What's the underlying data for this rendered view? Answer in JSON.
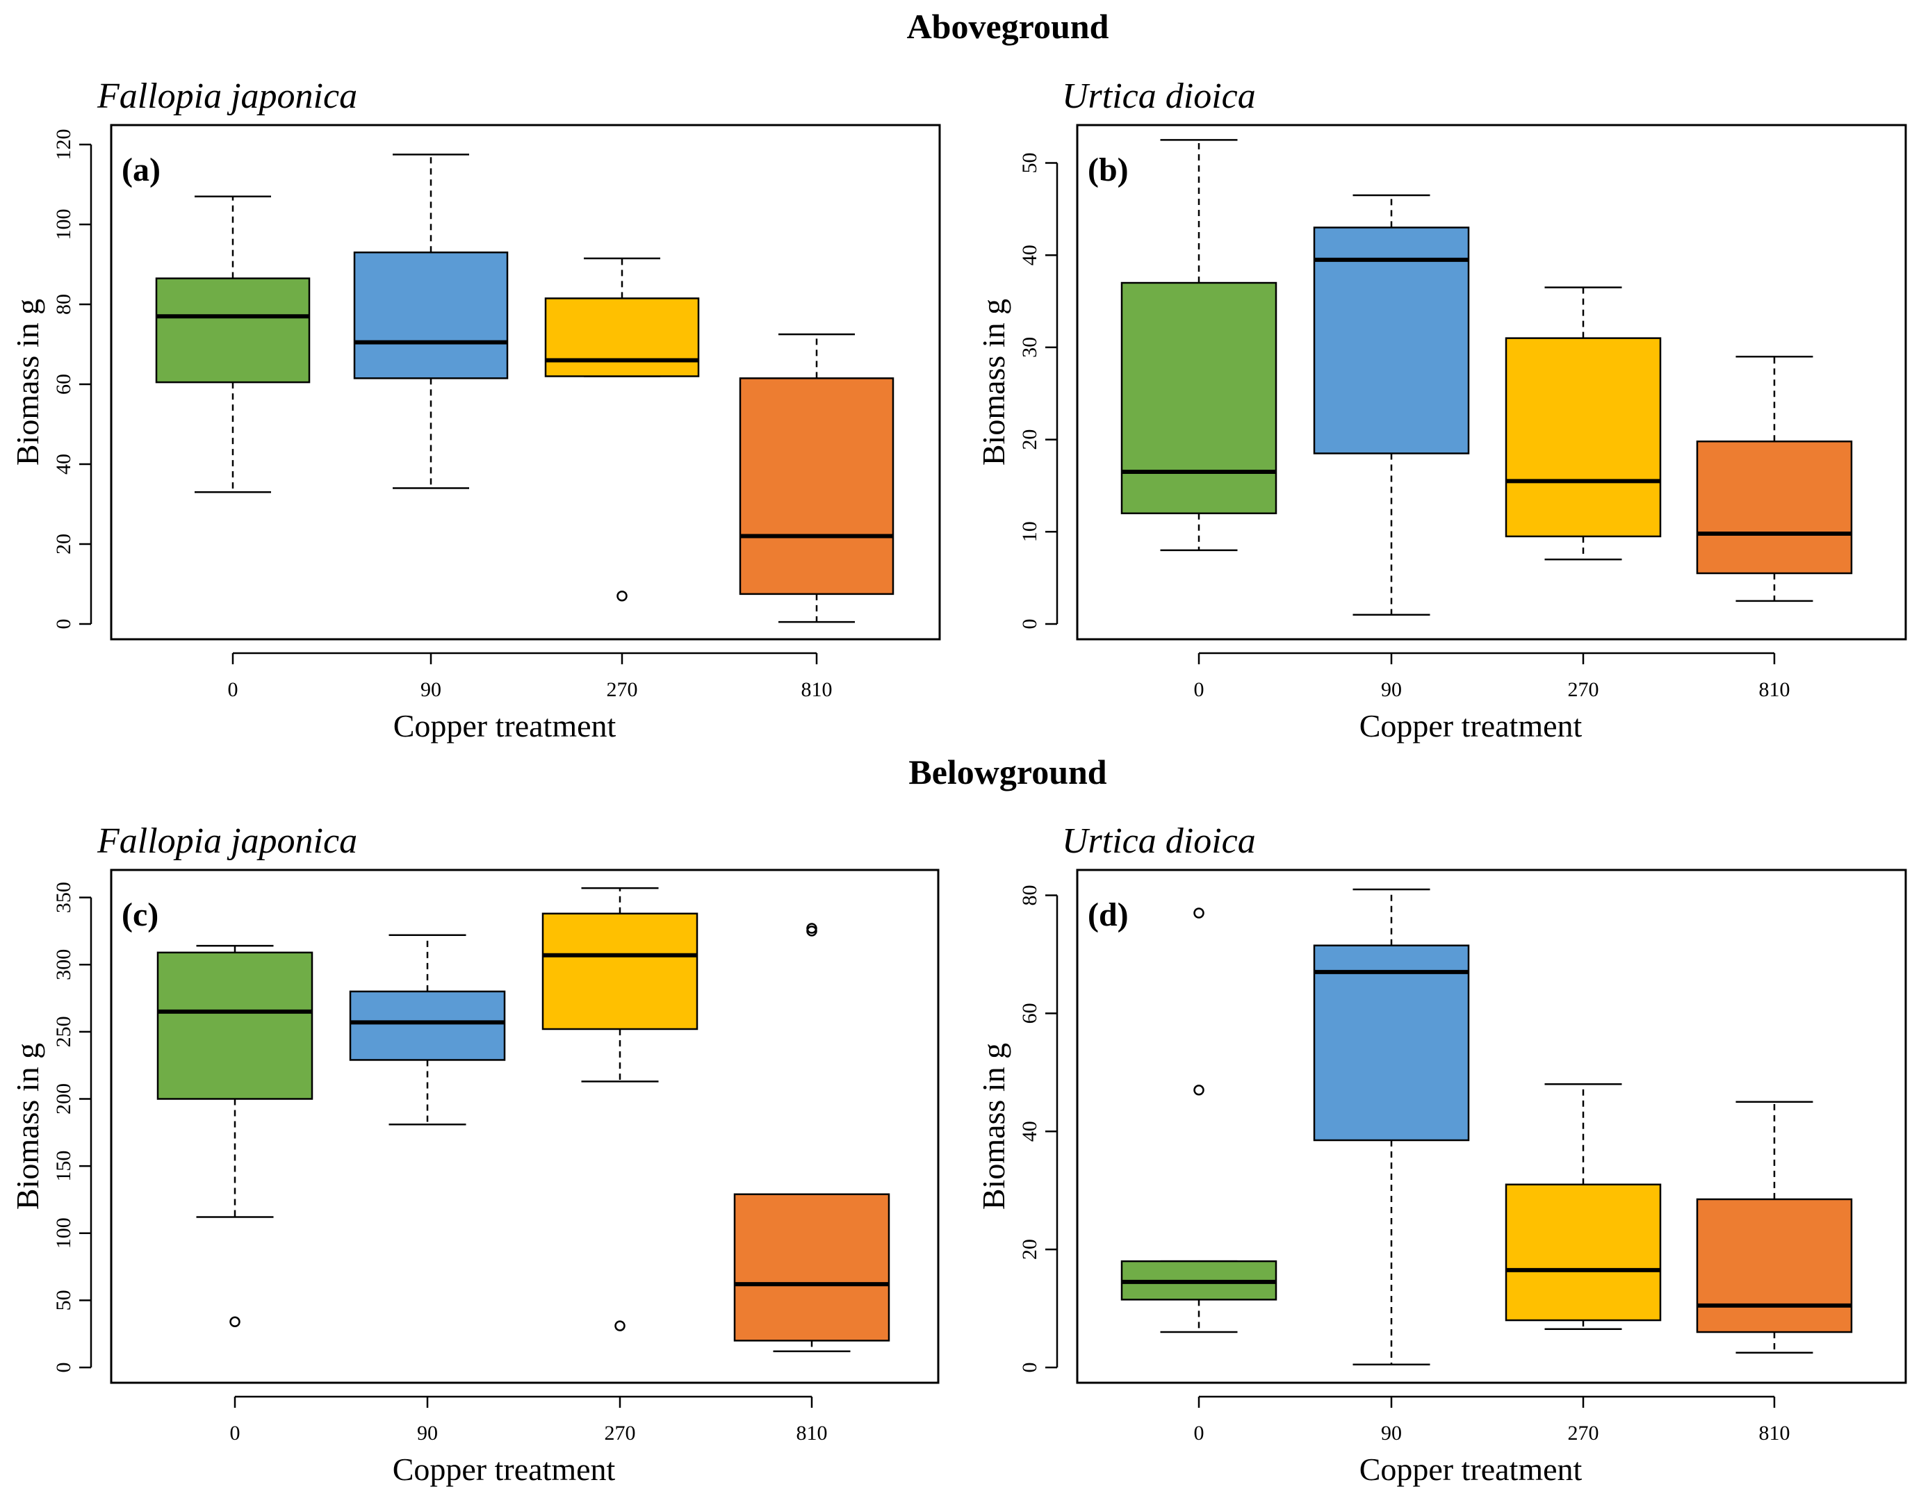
{
  "figure": {
    "section_titles": {
      "above": "Aboveground",
      "below": "Belowground"
    },
    "colors": {
      "0": "#70AD47",
      "90": "#5B9BD5",
      "270": "#FFC000",
      "810": "#ED7D31"
    }
  },
  "chart_data": [
    {
      "type": "boxplot",
      "panel": "(a)",
      "section": "Aboveground",
      "species": "Fallopia japonica",
      "xlabel": "Copper treatment",
      "ylabel": "Biomass in g",
      "categories": [
        "0",
        "90",
        "270",
        "810"
      ],
      "ylim": [
        0,
        120
      ],
      "yticks": [
        "0",
        "20",
        "40",
        "60",
        "80",
        "100",
        "120"
      ],
      "boxes": [
        {
          "category": "0",
          "whisker_low": 33,
          "q1": 60.5,
          "median": 77,
          "q3": 86.5,
          "whisker_high": 107,
          "outliers": []
        },
        {
          "category": "90",
          "whisker_low": 34,
          "q1": 61.5,
          "median": 70.5,
          "q3": 93,
          "whisker_high": 117.5,
          "outliers": []
        },
        {
          "category": "270",
          "whisker_low": 62,
          "q1": 62,
          "median": 66,
          "q3": 81.5,
          "whisker_high": 91.5,
          "outliers": [
            7
          ]
        },
        {
          "category": "810",
          "whisker_low": 0.5,
          "q1": 7.5,
          "median": 22,
          "q3": 61.5,
          "whisker_high": 72.5,
          "outliers": []
        }
      ]
    },
    {
      "type": "boxplot",
      "panel": "(b)",
      "section": "Aboveground",
      "species": "Urtica dioica",
      "xlabel": "Copper treatment",
      "ylabel": "Biomass in g",
      "categories": [
        "0",
        "90",
        "270",
        "810"
      ],
      "ylim": [
        0,
        52
      ],
      "yticks": [
        "0",
        "10",
        "20",
        "30",
        "40",
        "50"
      ],
      "boxes": [
        {
          "category": "0",
          "whisker_low": 8,
          "q1": 12,
          "median": 16.5,
          "q3": 37,
          "whisker_high": 52.5,
          "outliers": []
        },
        {
          "category": "90",
          "whisker_low": 1,
          "q1": 18.5,
          "median": 39.5,
          "q3": 43,
          "whisker_high": 46.5,
          "outliers": []
        },
        {
          "category": "270",
          "whisker_low": 7,
          "q1": 9.5,
          "median": 15.5,
          "q3": 31,
          "whisker_high": 36.5,
          "outliers": []
        },
        {
          "category": "810",
          "whisker_low": 2.5,
          "q1": 5.5,
          "median": 9.8,
          "q3": 19.8,
          "whisker_high": 29,
          "outliers": []
        }
      ]
    },
    {
      "type": "boxplot",
      "panel": "(c)",
      "section": "Belowground",
      "species": "Fallopia japonica",
      "xlabel": "Copper treatment",
      "ylabel": "Biomass in g",
      "categories": [
        "0",
        "90",
        "270",
        "810"
      ],
      "ylim": [
        0,
        356
      ],
      "yticks": [
        "0",
        "50",
        "100",
        "150",
        "200",
        "250",
        "300",
        "350"
      ],
      "boxes": [
        {
          "category": "0",
          "whisker_low": 112,
          "q1": 200,
          "median": 265,
          "q3": 309,
          "whisker_high": 314,
          "outliers": [
            34
          ]
        },
        {
          "category": "90",
          "whisker_low": 181,
          "q1": 229,
          "median": 257,
          "q3": 280,
          "whisker_high": 322,
          "outliers": []
        },
        {
          "category": "270",
          "whisker_low": 213,
          "q1": 252,
          "median": 307,
          "q3": 338,
          "whisker_high": 357,
          "outliers": [
            31
          ]
        },
        {
          "category": "810",
          "whisker_low": 12,
          "q1": 20,
          "median": 62,
          "q3": 129,
          "whisker_high": 129,
          "outliers": [
            325,
            327
          ]
        }
      ]
    },
    {
      "type": "boxplot",
      "panel": "(d)",
      "section": "Belowground",
      "species": "Urtica dioica",
      "xlabel": "Copper treatment",
      "ylabel": "Biomass in g",
      "categories": [
        "0",
        "90",
        "270",
        "810"
      ],
      "ylim": [
        0,
        81
      ],
      "yticks": [
        "0",
        "20",
        "40",
        "60",
        "80"
      ],
      "boxes": [
        {
          "category": "0",
          "whisker_low": 6,
          "q1": 11.5,
          "median": 14.5,
          "q3": 18,
          "whisker_high": 18,
          "outliers": [
            47,
            77
          ]
        },
        {
          "category": "90",
          "whisker_low": 0.5,
          "q1": 38.5,
          "median": 67,
          "q3": 71.5,
          "whisker_high": 81,
          "outliers": []
        },
        {
          "category": "270",
          "whisker_low": 6.5,
          "q1": 8,
          "median": 16.5,
          "q3": 31,
          "whisker_high": 48,
          "outliers": []
        },
        {
          "category": "810",
          "whisker_low": 2.5,
          "q1": 6,
          "median": 10.5,
          "q3": 28.5,
          "whisker_high": 45,
          "outliers": []
        }
      ]
    }
  ]
}
